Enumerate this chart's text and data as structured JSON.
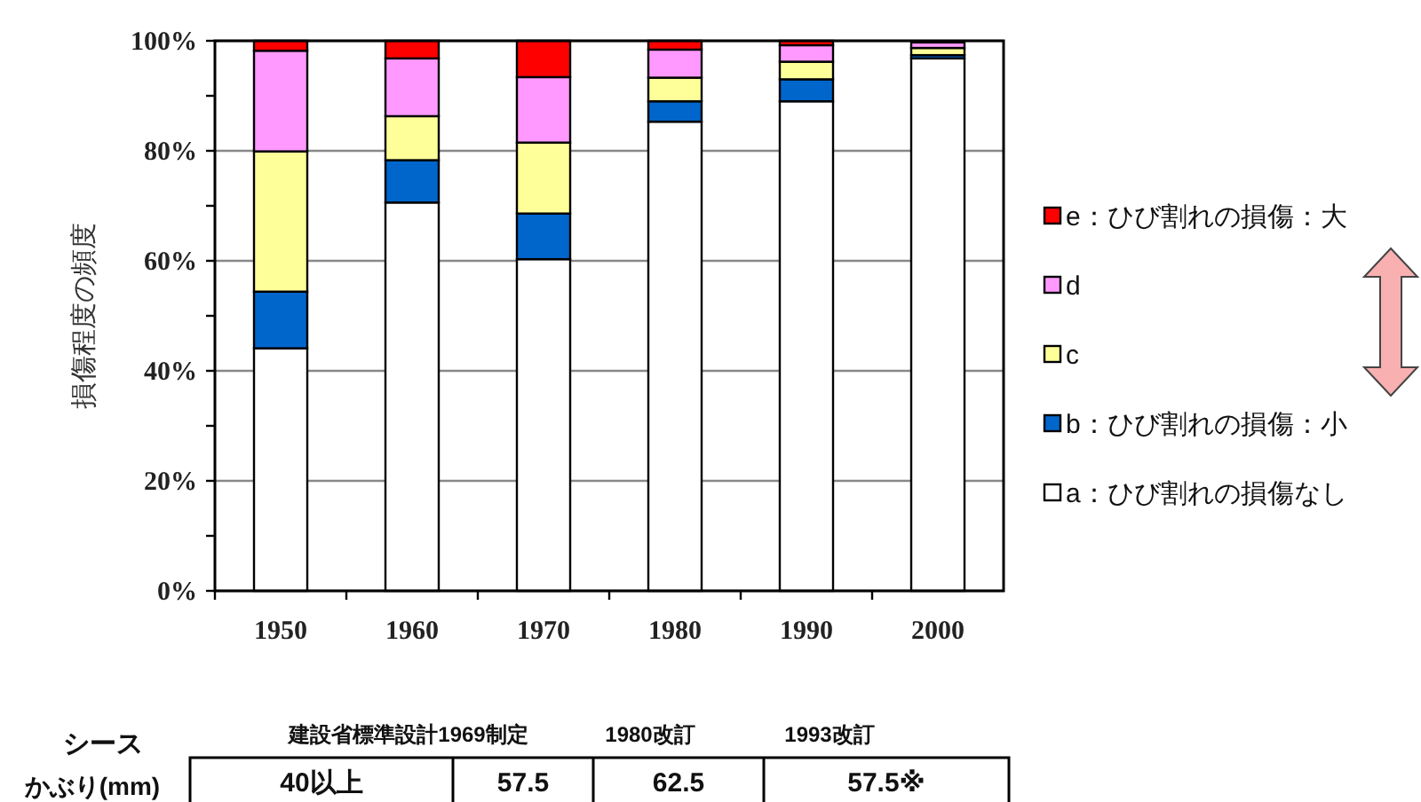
{
  "chart_data": {
    "type": "bar",
    "stacked": true,
    "ylabel": "損傷程度の頻度",
    "categories": [
      "1950",
      "1960",
      "1970",
      "1980",
      "1990",
      "2000"
    ],
    "series": [
      {
        "name": "a：ひび割れの損傷なし",
        "color": "#ffffff",
        "values": [
          44.1,
          70.6,
          60.3,
          85.3,
          89.0,
          96.8
        ]
      },
      {
        "name": "b：ひび割れの損傷：小",
        "color": "#0066cc",
        "values": [
          10.3,
          7.7,
          8.3,
          3.7,
          4.0,
          0.6
        ]
      },
      {
        "name": "c",
        "color": "#ffff99",
        "values": [
          25.5,
          8.0,
          12.9,
          4.3,
          3.2,
          1.3
        ]
      },
      {
        "name": "d",
        "color": "#ff99ff",
        "values": [
          18.3,
          10.5,
          11.9,
          5.1,
          3.0,
          1.0
        ]
      },
      {
        "name": "e：ひび割れの損傷：大",
        "color": "#ff0000",
        "values": [
          1.8,
          3.2,
          6.6,
          1.6,
          0.8,
          null
        ]
      }
    ],
    "ylim": [
      0,
      100
    ],
    "yticks": [
      {
        "value": 0,
        "label": "0%"
      },
      {
        "value": 20,
        "label": "20%"
      },
      {
        "value": 40,
        "label": "40%"
      },
      {
        "value": 60,
        "label": "60%"
      },
      {
        "value": 80,
        "label": "80%"
      },
      {
        "value": 100,
        "label": "100%"
      }
    ],
    "grid": "y",
    "legend": "right",
    "annotations": [
      "シース",
      "かぶり(mm)",
      "建設省標準設計1969制定",
      "1980改訂",
      "1993改訂",
      "40以上",
      "57.5",
      "62.5",
      "57.5※"
    ]
  }
}
